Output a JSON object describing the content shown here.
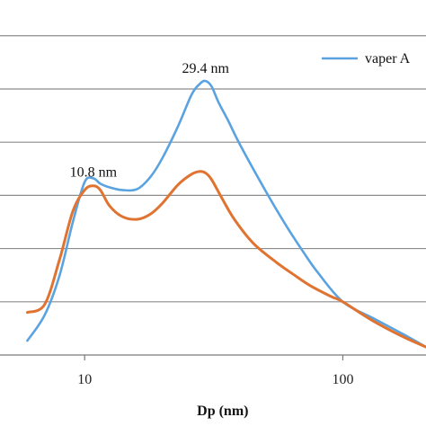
{
  "chart_data": {
    "type": "line",
    "title": "",
    "xlabel": "Dp (nm)",
    "ylabel": "",
    "x_scale": "log",
    "xlim": [
      4.7,
      210
    ],
    "ylim": [
      0,
      6.3
    ],
    "x_ticks": [
      10,
      100
    ],
    "x_tick_labels": [
      "10",
      "100"
    ],
    "y_gridlines": [
      1,
      2,
      3,
      4,
      5,
      6
    ],
    "grid": true,
    "legend": {
      "position": "top-right",
      "entries": [
        "vaper A"
      ]
    },
    "annotations": [
      {
        "text": "10.8 nm",
        "x": 10.8,
        "y": 3.35
      },
      {
        "text": "29.4 nm",
        "x": 29.4,
        "y": 5.3
      }
    ],
    "series": [
      {
        "name": "vaper A",
        "color": "#5ba3e0",
        "x": [
          6.0,
          7.0,
          8.0,
          9.0,
          10.0,
          10.8,
          11.5,
          12.5,
          14.0,
          16.0,
          18.0,
          20.0,
          23.0,
          26.0,
          28.0,
          29.4,
          31.0,
          33.0,
          36.0,
          40.0,
          50.0,
          60.0,
          70.0,
          80.0,
          100.0,
          130.0,
          170.0,
          210.0
        ],
        "values": [
          0.27,
          0.75,
          1.5,
          2.5,
          3.25,
          3.32,
          3.22,
          3.15,
          3.1,
          3.12,
          3.35,
          3.7,
          4.3,
          4.9,
          5.1,
          5.15,
          5.05,
          4.75,
          4.4,
          3.95,
          3.1,
          2.45,
          1.95,
          1.55,
          1.0,
          0.7,
          0.4,
          0.15
        ]
      },
      {
        "name": "",
        "color": "#e07330",
        "x": [
          6.0,
          7.0,
          8.0,
          9.0,
          10.0,
          10.8,
          11.5,
          12.5,
          14.0,
          16.0,
          18.0,
          20.0,
          23.0,
          26.0,
          28.0,
          29.4,
          31.0,
          34.0,
          38.0,
          45.0,
          55.0,
          65.0,
          75.0,
          90.0,
          100.0,
          130.0,
          170.0,
          210.0
        ],
        "values": [
          0.8,
          0.95,
          1.8,
          2.7,
          3.1,
          3.18,
          3.1,
          2.8,
          2.6,
          2.55,
          2.65,
          2.85,
          3.2,
          3.4,
          3.45,
          3.42,
          3.3,
          2.95,
          2.55,
          2.1,
          1.75,
          1.5,
          1.3,
          1.1,
          1.0,
          0.65,
          0.35,
          0.15
        ]
      }
    ]
  }
}
